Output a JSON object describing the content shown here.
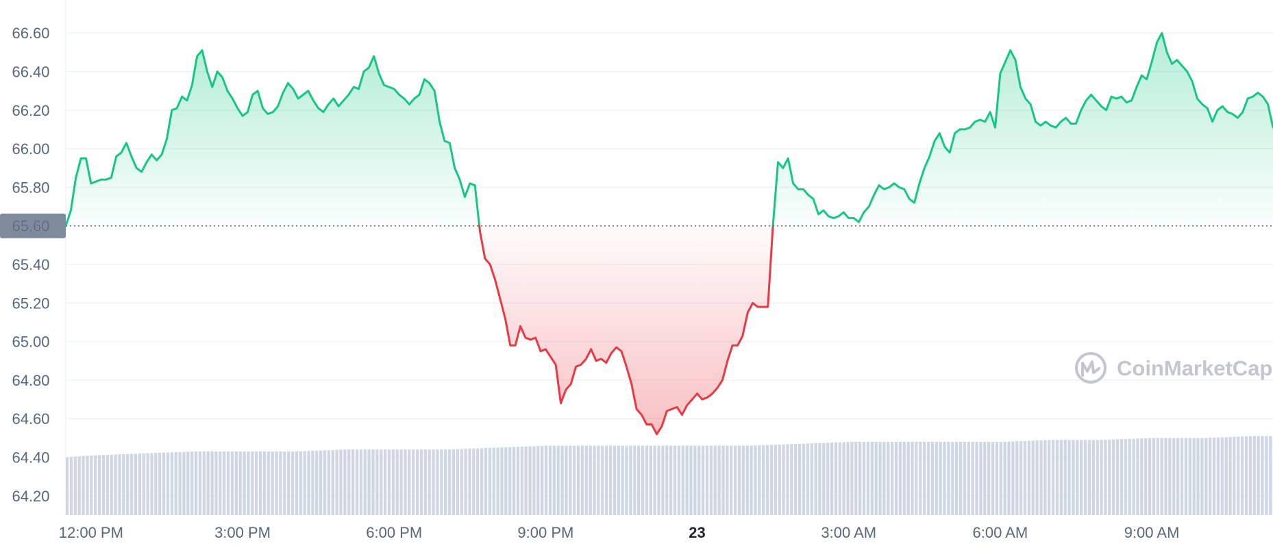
{
  "chart_data": {
    "type": "area",
    "title": "",
    "xlabel": "",
    "ylabel": "",
    "ylim": [
      64.1,
      66.7
    ],
    "xlim": [
      11.5,
      35.4
    ],
    "baseline": 65.6,
    "baseline_label": "65.60",
    "y_ticks": [
      "64.20",
      "64.40",
      "64.60",
      "64.80",
      "65.00",
      "65.20",
      "65.40",
      "65.60",
      "65.80",
      "66.00",
      "66.20",
      "66.40",
      "66.60"
    ],
    "x_ticks": [
      {
        "label": "12:00 PM",
        "x": 12
      },
      {
        "label": "3:00 PM",
        "x": 15
      },
      {
        "label": "6:00 PM",
        "x": 18
      },
      {
        "label": "9:00 PM",
        "x": 21
      },
      {
        "label": "23",
        "x": 24,
        "bold": true
      },
      {
        "label": "3:00 AM",
        "x": 27
      },
      {
        "label": "6:00 AM",
        "x": 30
      },
      {
        "label": "9:00 AM",
        "x": 33
      }
    ],
    "colors": {
      "up": "#16c784",
      "down": "#ea3943",
      "volume": "#cfd6e4",
      "grid": "#eff2f5",
      "baseline_label_bg": "#808a9d"
    },
    "legend": "none",
    "grid": true,
    "series": [
      {
        "x": [
          11.5,
          11.6,
          11.7,
          11.8,
          11.9,
          12.0,
          12.1,
          12.2,
          12.3,
          12.4,
          12.5,
          12.6,
          12.7,
          12.8,
          12.9,
          13.0,
          13.1,
          13.2,
          13.3,
          13.4,
          13.5,
          13.6,
          13.7,
          13.8,
          13.9,
          14.0,
          14.1,
          14.2,
          14.3,
          14.4,
          14.5,
          14.6,
          14.7,
          14.8,
          14.9,
          15.0,
          15.1,
          15.2,
          15.3,
          15.4,
          15.5,
          15.6,
          15.7,
          15.8,
          15.9,
          16.0,
          16.1,
          16.2,
          16.3,
          16.4,
          16.5,
          16.6,
          16.7,
          16.8,
          16.9,
          17.0,
          17.1,
          17.2,
          17.3,
          17.4,
          17.5,
          17.6,
          17.7,
          17.8,
          17.9,
          18.0,
          18.1,
          18.2,
          18.3,
          18.4,
          18.5,
          18.6,
          18.7,
          18.8,
          18.9,
          19.0,
          19.1,
          19.2,
          19.3,
          19.4,
          19.5,
          19.6,
          19.7,
          19.8,
          19.9,
          20.0,
          20.1,
          20.2,
          20.3,
          20.4,
          20.5,
          20.6,
          20.7,
          20.8,
          20.9,
          21.0,
          21.1,
          21.2,
          21.3,
          21.4,
          21.5,
          21.6,
          21.7,
          21.8,
          21.9,
          22.0,
          22.1,
          22.2,
          22.3,
          22.4,
          22.5,
          22.6,
          22.7,
          22.8,
          22.9,
          23.0,
          23.1,
          23.2,
          23.3,
          23.4,
          23.5,
          23.6,
          23.7,
          23.8,
          23.9,
          24.0,
          24.1,
          24.2,
          24.3,
          24.4,
          24.5,
          24.6,
          24.7,
          24.8,
          24.9,
          25.0,
          25.1,
          25.2,
          25.3,
          25.4,
          25.5,
          25.6,
          25.7,
          25.8,
          25.9,
          26.0,
          26.1,
          26.2,
          26.3,
          26.4,
          26.5,
          26.6,
          26.7,
          26.8,
          26.9,
          27.0,
          27.1,
          27.2,
          27.3,
          27.4,
          27.5,
          27.6,
          27.7,
          27.8,
          27.9,
          28.0,
          28.1,
          28.2,
          28.3,
          28.4,
          28.5,
          28.6,
          28.7,
          28.8,
          28.9,
          29.0,
          29.1,
          29.2,
          29.3,
          29.4,
          29.5,
          29.6,
          29.7,
          29.8,
          29.9,
          30.0,
          30.1,
          30.2,
          30.3,
          30.4,
          30.5,
          30.6,
          30.7,
          30.8,
          30.9,
          31.0,
          31.1,
          31.2,
          31.3,
          31.4,
          31.5,
          31.6,
          31.7,
          31.8,
          31.9,
          32.0,
          32.1,
          32.2,
          32.3,
          32.4,
          32.5,
          32.6,
          32.7,
          32.8,
          32.9,
          33.0,
          33.1,
          33.2,
          33.3,
          33.4,
          33.5,
          33.6,
          33.7,
          33.8,
          33.9,
          34.0,
          34.1,
          34.2,
          34.3,
          34.4,
          34.5,
          34.6,
          34.7,
          34.8,
          34.9,
          35.0,
          35.1,
          35.2,
          35.3,
          35.4
        ],
        "y": [
          65.6,
          65.68,
          65.85,
          65.95,
          65.95,
          65.82,
          65.83,
          65.84,
          65.84,
          65.85,
          65.96,
          65.98,
          66.03,
          65.96,
          65.9,
          65.88,
          65.93,
          65.97,
          65.94,
          65.97,
          66.05,
          66.2,
          66.21,
          66.27,
          66.25,
          66.33,
          66.48,
          66.51,
          66.4,
          66.32,
          66.4,
          66.37,
          66.3,
          66.26,
          66.21,
          66.17,
          66.19,
          66.28,
          66.3,
          66.21,
          66.18,
          66.19,
          66.22,
          66.29,
          66.34,
          66.31,
          66.26,
          66.28,
          66.3,
          66.25,
          66.21,
          66.19,
          66.23,
          66.26,
          66.22,
          66.25,
          66.28,
          66.32,
          66.31,
          66.4,
          66.42,
          66.48,
          66.39,
          66.33,
          66.32,
          66.31,
          66.28,
          66.26,
          66.23,
          66.26,
          66.28,
          66.36,
          66.34,
          66.3,
          66.14,
          66.04,
          66.03,
          65.9,
          65.84,
          65.75,
          65.82,
          65.81,
          65.57,
          65.43,
          65.4,
          65.32,
          65.22,
          65.12,
          64.98,
          64.98,
          65.08,
          65.02,
          65.01,
          65.02,
          64.95,
          64.96,
          64.92,
          64.88,
          64.68,
          64.75,
          64.78,
          64.87,
          64.88,
          64.91,
          64.96,
          64.9,
          64.91,
          64.89,
          64.94,
          64.97,
          64.95,
          64.87,
          64.78,
          64.65,
          64.62,
          64.57,
          64.57,
          64.52,
          64.56,
          64.64,
          64.65,
          64.66,
          64.62,
          64.67,
          64.7,
          64.73,
          64.7,
          64.71,
          64.73,
          64.76,
          64.8,
          64.9,
          64.98,
          64.98,
          65.03,
          65.15,
          65.2,
          65.18,
          65.18,
          65.18,
          65.6,
          65.93,
          65.9,
          65.95,
          65.82,
          65.79,
          65.79,
          65.76,
          65.74,
          65.66,
          65.68,
          65.65,
          65.64,
          65.65,
          65.67,
          65.64,
          65.64,
          65.62,
          65.67,
          65.7,
          65.76,
          65.81,
          65.79,
          65.8,
          65.82,
          65.8,
          65.79,
          65.74,
          65.72,
          65.82,
          65.9,
          65.96,
          66.04,
          66.08,
          66.01,
          65.98,
          66.08,
          66.1,
          66.1,
          66.11,
          66.14,
          66.15,
          66.14,
          66.19,
          66.11,
          66.39,
          66.45,
          66.51,
          66.46,
          66.32,
          66.26,
          66.23,
          66.14,
          66.12,
          66.14,
          66.12,
          66.11,
          66.14,
          66.16,
          66.13,
          66.13,
          66.2,
          66.25,
          66.28,
          66.25,
          66.22,
          66.2,
          66.27,
          66.26,
          66.27,
          66.24,
          66.25,
          66.32,
          66.38,
          66.36,
          66.45,
          66.55,
          66.6,
          66.5,
          66.44,
          66.46,
          66.43,
          66.4,
          66.35,
          66.26,
          66.23,
          66.21,
          66.14,
          66.2,
          66.22,
          66.19,
          66.18,
          66.16,
          66.19,
          66.26,
          66.27,
          66.29,
          66.27,
          66.23,
          66.11
        ]
      }
    ],
    "volume": {
      "x": [
        11.5,
        12.0,
        13.0,
        14.0,
        15.0,
        16.0,
        17.0,
        18.0,
        19.0,
        20.0,
        21.0,
        22.0,
        23.0,
        24.0,
        25.0,
        26.0,
        27.0,
        28.0,
        29.0,
        30.0,
        31.0,
        32.0,
        33.0,
        34.0,
        35.0,
        35.4
      ],
      "y": [
        64.4,
        64.41,
        64.42,
        64.43,
        64.43,
        64.43,
        64.44,
        64.44,
        64.44,
        64.45,
        64.46,
        64.46,
        64.46,
        64.46,
        64.46,
        64.47,
        64.48,
        64.48,
        64.48,
        64.48,
        64.49,
        64.49,
        64.5,
        64.5,
        64.51,
        64.51
      ]
    },
    "watermark": "CoinMarketCap"
  }
}
